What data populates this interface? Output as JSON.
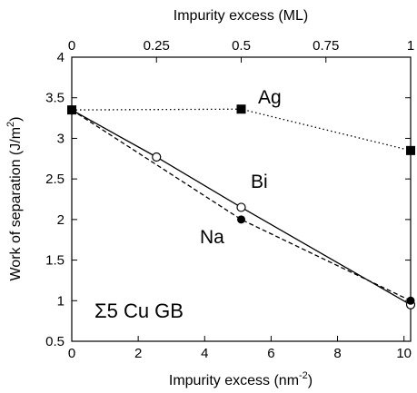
{
  "chart_data": {
    "type": "line",
    "xlabel_bottom": "Impurity excess (nm",
    "xlabel_bottom_sup": "-2",
    "xlabel_bottom_end": ")",
    "xlabel_top": "Impurity excess (ML)",
    "ylabel": "Work of separation (J/m",
    "ylabel_sup": "2",
    "ylabel_end": ")",
    "xlim": [
      0,
      10.2
    ],
    "ylim": [
      0.5,
      4
    ],
    "x_ticks": [
      0,
      2,
      4,
      6,
      8,
      10
    ],
    "x_tick_labels": [
      "0",
      "2",
      "4",
      "6",
      "8",
      "10"
    ],
    "y_ticks": [
      0.5,
      1,
      1.5,
      2,
      2.5,
      3,
      3.5,
      4
    ],
    "y_tick_labels": [
      "0.5",
      "1",
      "1.5",
      "2",
      "2.5",
      "3",
      "3.5",
      "4"
    ],
    "top_ticks": [
      0,
      2.55,
      5.1,
      7.65,
      10.2
    ],
    "top_tick_labels": [
      "0",
      "0.25",
      "0.5",
      "0.75",
      "1"
    ],
    "annotation": "Σ5 Cu GB",
    "series": [
      {
        "name": "Ag",
        "line_style": "dotted",
        "marker": "filled-square",
        "x": [
          0,
          5.1,
          10.2
        ],
        "y": [
          3.35,
          3.36,
          2.85
        ]
      },
      {
        "name": "Bi",
        "line_style": "solid",
        "marker": "open-circle",
        "x": [
          0,
          2.55,
          5.1,
          10.2
        ],
        "y": [
          3.35,
          2.77,
          2.15,
          0.95
        ]
      },
      {
        "name": "Na",
        "line_style": "dashed",
        "marker": "filled-circle",
        "x": [
          0,
          5.1,
          10.2
        ],
        "y": [
          3.35,
          2.0,
          1.0
        ]
      }
    ]
  }
}
